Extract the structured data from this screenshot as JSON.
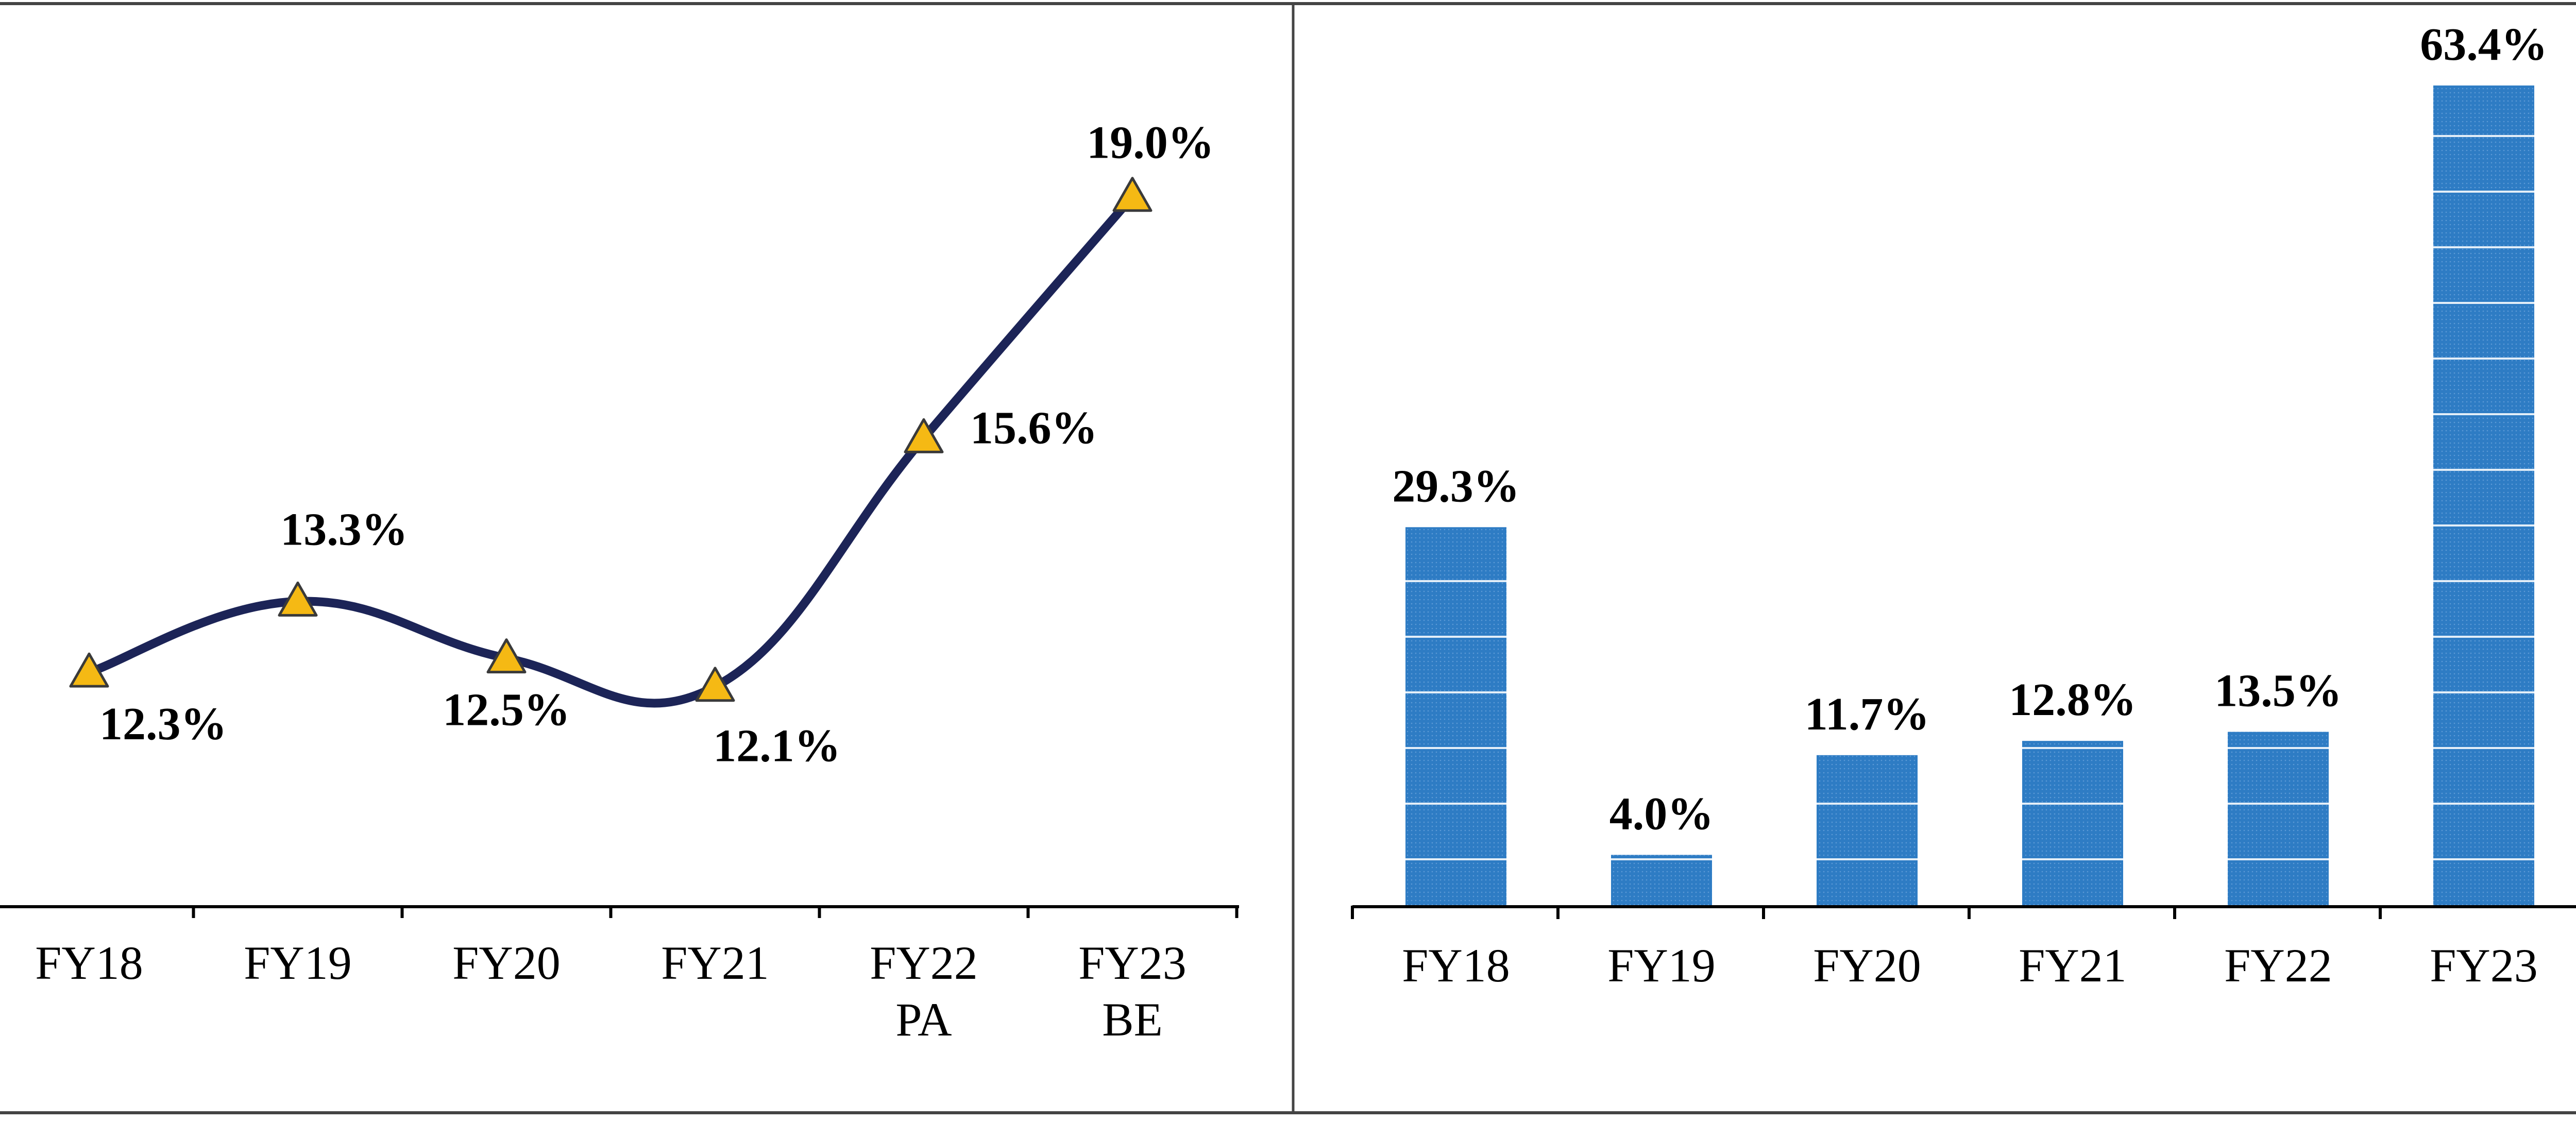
{
  "chart_data": [
    {
      "type": "line",
      "categories": [
        [
          "FY18"
        ],
        [
          "FY19"
        ],
        [
          "FY20"
        ],
        [
          "FY21"
        ],
        [
          "FY22",
          "PA"
        ],
        [
          "FY23",
          "BE"
        ]
      ],
      "values": [
        12.3,
        13.3,
        12.5,
        12.1,
        15.6,
        19.0
      ],
      "data_labels": [
        "12.3%",
        "13.3%",
        "12.5%",
        "12.1%",
        "15.6%",
        "19.0%"
      ],
      "ylim": [
        9.0,
        20.5
      ],
      "grid": false,
      "legend": "none",
      "colors": {
        "line": "#1c2457",
        "marker_fill": "#f5b914",
        "marker_stroke": "#3a3a3a"
      }
    },
    {
      "type": "bar",
      "categories": [
        "FY18",
        "FY19",
        "FY20",
        "FY21",
        "FY22",
        "FY23"
      ],
      "values": [
        29.3,
        4.0,
        11.7,
        12.8,
        13.5,
        63.4
      ],
      "data_labels": [
        "29.3%",
        "4.0%",
        "11.7%",
        "12.8%",
        "13.5%",
        "63.4%"
      ],
      "ylim": [
        0,
        70
      ],
      "grid": false,
      "legend": "none",
      "colors": {
        "bar": "#2e7cc4",
        "bar_stripe": "#e3eef8"
      }
    }
  ]
}
